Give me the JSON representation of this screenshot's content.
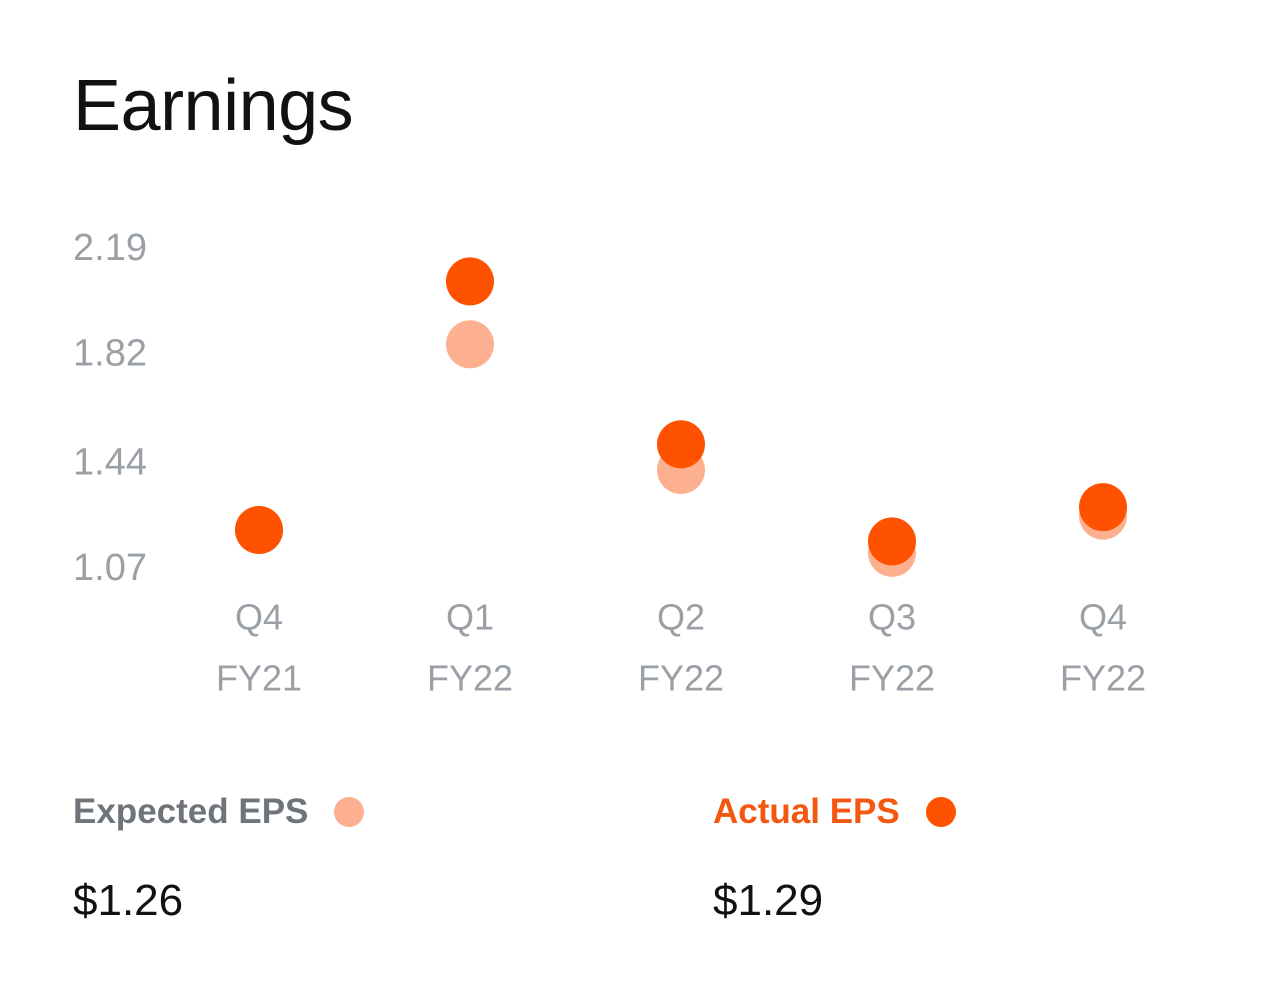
{
  "page": {
    "title": "Earnings"
  },
  "colors": {
    "expected": "#fdb08f",
    "actual": "#fe5200",
    "tick": "#9aa0a6",
    "expected_label": "#6e7479",
    "actual_label": "#f4570f"
  },
  "legend": {
    "expected": {
      "label": "Expected EPS",
      "value": "$1.26"
    },
    "actual": {
      "label": "Actual EPS",
      "value": "$1.29"
    }
  },
  "chart_data": {
    "type": "scatter",
    "categories": [
      {
        "quarter": "Q4",
        "fiscal_year": "FY21"
      },
      {
        "quarter": "Q1",
        "fiscal_year": "FY22"
      },
      {
        "quarter": "Q2",
        "fiscal_year": "FY22"
      },
      {
        "quarter": "Q3",
        "fiscal_year": "FY22"
      },
      {
        "quarter": "Q4",
        "fiscal_year": "FY22"
      }
    ],
    "yticks": [
      "2.19",
      "1.82",
      "1.44",
      "1.07"
    ],
    "ylim": [
      1.07,
      2.19
    ],
    "series": [
      {
        "name": "Expected EPS",
        "values": [
          1.21,
          1.86,
          1.42,
          1.13,
          1.26
        ]
      },
      {
        "name": "Actual EPS",
        "values": [
          1.21,
          2.08,
          1.51,
          1.17,
          1.29
        ]
      }
    ],
    "grid": false
  }
}
